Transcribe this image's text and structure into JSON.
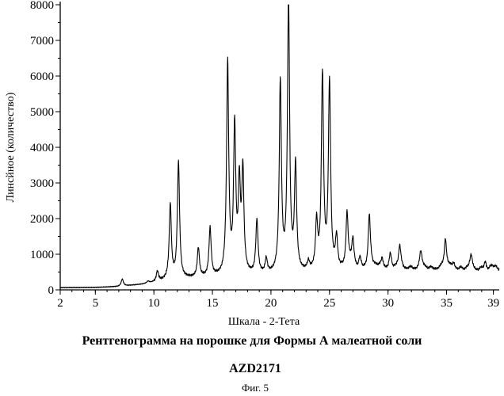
{
  "chart_data": {
    "type": "line",
    "xlabel": "Шкала - 2-Тета",
    "ylabel": "Линсйное (количество)",
    "xlim": [
      2,
      39.5
    ],
    "ylim": [
      0,
      8000
    ],
    "grid": false,
    "x_ticks": [
      2,
      5,
      10,
      15,
      20,
      25,
      30,
      35,
      39
    ],
    "y_ticks": [
      0,
      1000,
      2000,
      3000,
      4000,
      5000,
      6000,
      7000,
      8000
    ],
    "baseline": [
      [
        2,
        60
      ],
      [
        5,
        65
      ],
      [
        7,
        90
      ],
      [
        9,
        150
      ],
      [
        10,
        200
      ],
      [
        11,
        260
      ],
      [
        13,
        320
      ],
      [
        15,
        350
      ],
      [
        17,
        380
      ],
      [
        19,
        400
      ],
      [
        21,
        420
      ],
      [
        23,
        470
      ],
      [
        25,
        500
      ],
      [
        27,
        540
      ],
      [
        29,
        570
      ],
      [
        31,
        580
      ],
      [
        33,
        580
      ],
      [
        35,
        580
      ],
      [
        37,
        560
      ],
      [
        39.5,
        540
      ]
    ],
    "peaks": [
      {
        "x": 7.3,
        "y": 300
      },
      {
        "x": 9.5,
        "y": 230
      },
      {
        "x": 10.3,
        "y": 500
      },
      {
        "x": 11.4,
        "y": 2350
      },
      {
        "x": 12.1,
        "y": 3550
      },
      {
        "x": 13.8,
        "y": 1150
      },
      {
        "x": 14.8,
        "y": 1700
      },
      {
        "x": 16.3,
        "y": 6300
      },
      {
        "x": 16.9,
        "y": 4450
      },
      {
        "x": 17.3,
        "y": 2800
      },
      {
        "x": 17.6,
        "y": 3200
      },
      {
        "x": 18.8,
        "y": 1900
      },
      {
        "x": 19.6,
        "y": 800
      },
      {
        "x": 20.8,
        "y": 5750
      },
      {
        "x": 21.5,
        "y": 8000
      },
      {
        "x": 22.1,
        "y": 3400
      },
      {
        "x": 23.2,
        "y": 700
      },
      {
        "x": 23.9,
        "y": 1800
      },
      {
        "x": 24.4,
        "y": 5950
      },
      {
        "x": 25.0,
        "y": 5750
      },
      {
        "x": 25.6,
        "y": 1400
      },
      {
        "x": 26.5,
        "y": 2100
      },
      {
        "x": 27.0,
        "y": 1300
      },
      {
        "x": 27.6,
        "y": 800
      },
      {
        "x": 28.4,
        "y": 2050
      },
      {
        "x": 29.5,
        "y": 850
      },
      {
        "x": 30.2,
        "y": 950
      },
      {
        "x": 31.0,
        "y": 1100
      },
      {
        "x": 32.8,
        "y": 950
      },
      {
        "x": 34.9,
        "y": 1350
      },
      {
        "x": 35.6,
        "y": 750
      },
      {
        "x": 37.1,
        "y": 850
      },
      {
        "x": 38.3,
        "y": 800
      },
      {
        "x": 39.2,
        "y": 600
      }
    ]
  },
  "caption": {
    "title": "Рентгенограмма на порошке для Формы А малеатной соли",
    "compound": "AZD2171",
    "figure": "Фиг. 5"
  }
}
